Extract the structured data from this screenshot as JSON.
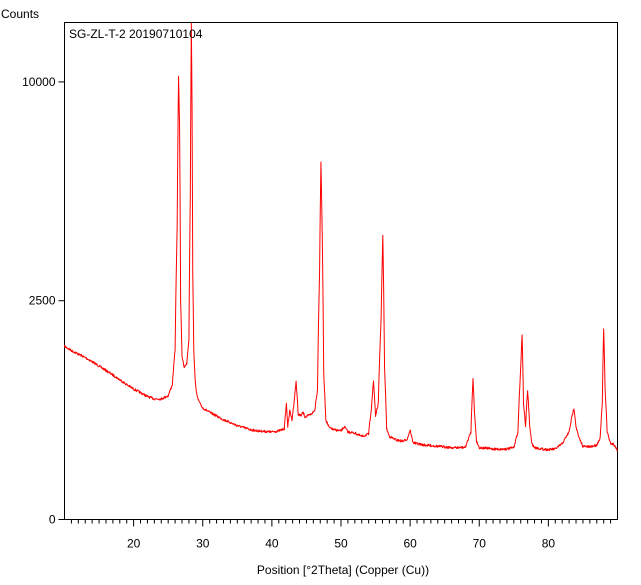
{
  "chart_data": {
    "type": "line",
    "title": "SG-ZL-T-2 20190710104",
    "xlabel": "Position [°2Theta] (Copper (Cu))",
    "ylabel": "Counts",
    "xlim": [
      10,
      90
    ],
    "ylim": [
      0,
      12900
    ],
    "y_scale": "sqrt",
    "x_ticks": [
      20,
      30,
      40,
      50,
      60,
      70,
      80
    ],
    "y_ticks": [
      0,
      2500,
      10000
    ],
    "grid": false,
    "series": [
      {
        "color": "#ff0000",
        "x": [
          10,
          11,
          12,
          13,
          14,
          15,
          16,
          17,
          18,
          19,
          20,
          21,
          22,
          23,
          24,
          25,
          25.6,
          26.0,
          26.3,
          26.5,
          26.65,
          26.8,
          27.0,
          27.3,
          27.7,
          28.0,
          28.2,
          28.35,
          28.45,
          28.55,
          28.7,
          28.9,
          29.2,
          29.6,
          30,
          31,
          32,
          33,
          34,
          35,
          36,
          37,
          38,
          39,
          40,
          41,
          41.8,
          42.1,
          42.3,
          42.6,
          42.9,
          43.2,
          43.5,
          43.8,
          44.2,
          44.5,
          44.8,
          45.2,
          45.7,
          46.2,
          46.6,
          46.9,
          47.1,
          47.3,
          47.5,
          47.8,
          48.3,
          49,
          50,
          50.5,
          51,
          52,
          53,
          54,
          54.4,
          54.7,
          55.0,
          55.4,
          55.8,
          56.05,
          56.3,
          56.6,
          57,
          58,
          59,
          59.6,
          60.0,
          60.4,
          61,
          62,
          63,
          64,
          65,
          66,
          67,
          68,
          68.8,
          69.1,
          69.3,
          69.6,
          70,
          71,
          72,
          73,
          74,
          75,
          75.6,
          76.0,
          76.2,
          76.4,
          76.7,
          77.0,
          77.3,
          77.6,
          78.0,
          79,
          80,
          81,
          82,
          83,
          83.4,
          83.7,
          84.0,
          84.4,
          85,
          86,
          87,
          87.5,
          87.8,
          88.0,
          88.2,
          88.5,
          89,
          89.4,
          90
        ],
        "y": [
          1570,
          1490,
          1430,
          1370,
          1300,
          1230,
          1160,
          1090,
          1020,
          950,
          890,
          840,
          790,
          760,
          760,
          800,
          950,
          1500,
          4500,
          10300,
          8000,
          2500,
          1400,
          1200,
          1280,
          1700,
          5500,
          12900,
          9000,
          3200,
          1500,
          1000,
          780,
          700,
          650,
          600,
          560,
          520,
          490,
          460,
          440,
          420,
          410,
          405,
          400,
          410,
          430,
          700,
          450,
          620,
          520,
          700,
          1000,
          580,
          560,
          600,
          550,
          560,
          580,
          620,
          880,
          3200,
          6700,
          4000,
          1100,
          520,
          440,
          420,
          410,
          450,
          400,
          390,
          360,
          380,
          650,
          1000,
          560,
          700,
          2100,
          4200,
          1200,
          430,
          360,
          330,
          320,
          340,
          420,
          310,
          300,
          290,
          285,
          280,
          275,
          270,
          270,
          272,
          400,
          1050,
          600,
          320,
          270,
          265,
          260,
          258,
          260,
          270,
          400,
          1200,
          1800,
          700,
          450,
          870,
          450,
          300,
          270,
          260,
          255,
          260,
          300,
          400,
          550,
          650,
          450,
          350,
          280,
          275,
          290,
          350,
          700,
          1900,
          900,
          400,
          300,
          300,
          250
        ]
      }
    ]
  }
}
